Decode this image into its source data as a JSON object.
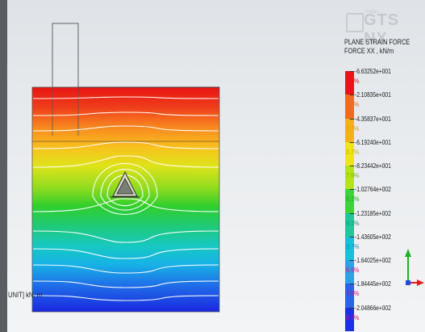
{
  "logo": {
    "text": "GTS NX",
    "small": "midas"
  },
  "legend": {
    "title_line1": "PLANE STRAIN FORCE",
    "title_line2": "FORCE XX , kN/m",
    "values": [
      "-6.63252e+001",
      "-2.10835e+001",
      "-4.35837e+001",
      "-6.19240e+001",
      "-8.23442e+001",
      "-1.02764e+002",
      "-1.23185e+002",
      "-1.43605e+002",
      "-1.64025e+002",
      "-1.84445e+002",
      "-2.04866e+002"
    ],
    "percents": [
      "7.8%",
      "8.7%",
      "7.7%",
      "8.7%",
      "7.9%",
      "8.1%",
      "9.1%",
      "9.7%",
      "6.9%",
      "7.9%",
      "8.7%"
    ],
    "colors": [
      "#e8141b",
      "#f26a1d",
      "#f3b21a",
      "#eee31c",
      "#b5e31a",
      "#3fd33a",
      "#1ec89a",
      "#16c2d8",
      "#2ba2e8",
      "#2b62ea",
      "#1d2fe6"
    ],
    "percent_colors": [
      "#e8141b",
      "#f26a1d",
      "#d8a010",
      "#c9b800",
      "#7bb812",
      "#22a82c",
      "#129a78",
      "#1294ad",
      "#e0107a",
      "#d0107a",
      "#d0107a"
    ]
  },
  "status": {
    "unit_text": "UNIT]  kN, m"
  },
  "icons": {
    "axis": "axis-triad-icon"
  }
}
